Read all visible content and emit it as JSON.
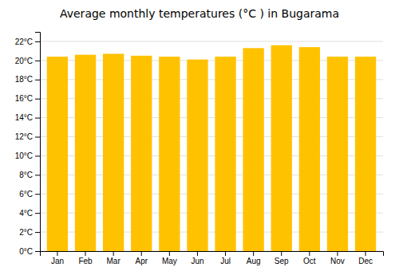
{
  "chart_data": {
    "type": "bar",
    "title": "Average monthly temperatures (°C ) in Bugarama",
    "categories": [
      "Jan",
      "Feb",
      "Mar",
      "Apr",
      "May",
      "Jun",
      "Jul",
      "Aug",
      "Sep",
      "Oct",
      "Nov",
      "Dec"
    ],
    "values": [
      20.4,
      20.6,
      20.7,
      20.5,
      20.4,
      20.1,
      20.4,
      21.3,
      21.6,
      21.4,
      20.4,
      20.4
    ],
    "color": "#FFC200",
    "ylim": [
      0,
      23
    ],
    "yticks": [
      {
        "value": 0,
        "label": "0°C"
      },
      {
        "value": 2,
        "label": "2°C"
      },
      {
        "value": 4,
        "label": "4°C"
      },
      {
        "value": 6,
        "label": "6°C"
      },
      {
        "value": 8,
        "label": "8°C"
      },
      {
        "value": 10,
        "label": "10°C"
      },
      {
        "value": 12,
        "label": "12°C"
      },
      {
        "value": 14,
        "label": "14°C"
      },
      {
        "value": 16,
        "label": "16°C"
      },
      {
        "value": 18,
        "label": "18°C"
      },
      {
        "value": 20,
        "label": "20°C"
      },
      {
        "value": 22,
        "label": "22°C"
      }
    ],
    "grid": true
  }
}
